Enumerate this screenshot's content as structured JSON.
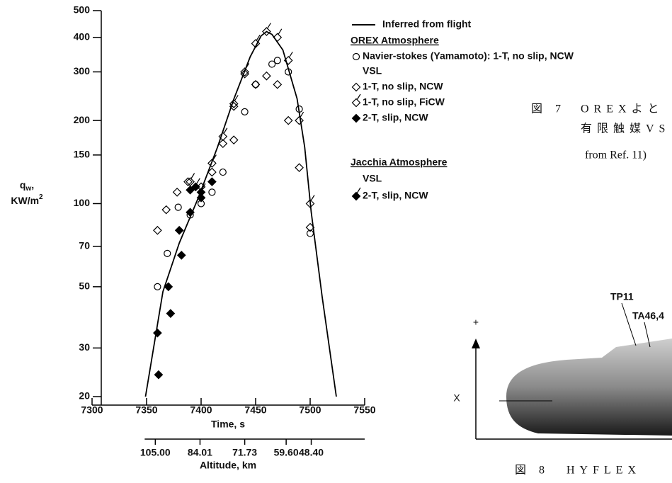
{
  "chart_data": {
    "type": "line",
    "log_y": true,
    "ylim": [
      20,
      500
    ],
    "yticks": [
      20,
      30,
      50,
      70,
      100,
      150,
      200,
      300,
      400,
      500
    ],
    "xlim": [
      7300,
      7550
    ],
    "xticks": [
      7300,
      7350,
      7400,
      7450,
      7500,
      7550
    ],
    "xlabel": "Time, s",
    "ylabel": {
      "symbol": "q",
      "subscript": "w",
      "suffix": ",",
      "unit": "KW/m",
      "unit_power": "2"
    },
    "altitude_axis": {
      "label": "Altitude, km",
      "x": [
        7358,
        7399,
        7440,
        7478,
        7501
      ],
      "ticks": [
        {
          "value": 105,
          "label": "105.00"
        },
        {
          "value": 84.01,
          "label": "84.01"
        },
        {
          "value": 71.73,
          "label": "71.73"
        },
        {
          "value": 59.6,
          "label": "59.60"
        },
        {
          "value": 48.4,
          "label": "48.40"
        }
      ]
    },
    "legend_headings": [
      "OREX Atmosphere",
      "VSL",
      "Jacchia Atmosphere",
      "VSL"
    ],
    "series": [
      {
        "name": "Inferred from flight",
        "color": "#000000",
        "marker": "line",
        "x": [
          7349,
          7365,
          7380,
          7397,
          7415,
          7430,
          7445,
          7455,
          7460,
          7465,
          7475,
          7488,
          7495,
          7501,
          7511,
          7524
        ],
        "values": [
          20,
          48,
          72,
          104,
          160,
          239,
          340,
          405,
          420,
          410,
          360,
          240,
          160,
          93,
          46,
          20
        ]
      },
      {
        "name": "Navier-stokes (Yamamoto): 1-T, no slip, NCW",
        "color": "#000000",
        "marker": "circle",
        "x": [
          7360,
          7369,
          7379,
          7390,
          7400,
          7410,
          7420,
          7440,
          7450,
          7465,
          7470,
          7480,
          7490,
          7500
        ],
        "values": [
          50,
          66,
          97,
          91,
          100,
          110,
          130,
          215,
          270,
          320,
          330,
          300,
          220,
          78
        ]
      },
      {
        "name": "1-T, no slip, NCW",
        "color": "#000000",
        "marker": "diamond",
        "x": [
          7360,
          7368,
          7378,
          7388,
          7400,
          7410,
          7420,
          7430,
          7430,
          7440,
          7450,
          7460,
          7470,
          7480,
          7490,
          7500
        ],
        "values": [
          80,
          95,
          110,
          120,
          115,
          130,
          165,
          170,
          225,
          295,
          270,
          290,
          270,
          200,
          135,
          82
        ]
      },
      {
        "name": "1-T, no slip, FiCW",
        "color": "#000000",
        "marker": "diamond-tick",
        "x": [
          7390,
          7410,
          7420,
          7430,
          7440,
          7450,
          7460,
          7470,
          7480,
          7490,
          7500
        ],
        "values": [
          120,
          140,
          175,
          230,
          300,
          380,
          420,
          400,
          330,
          200,
          100
        ]
      },
      {
        "name": "2-T, slip, NCW",
        "color": "#000000",
        "marker": "diamond-filled",
        "x": [
          7361,
          7360,
          7370,
          7372,
          7380,
          7382,
          7390,
          7390,
          7400,
          7410
        ],
        "values": [
          24,
          34,
          50,
          40,
          80,
          65,
          112,
          93,
          105,
          120
        ]
      },
      {
        "name": "2-T, slip, NCW",
        "color": "#000000",
        "marker": "diamond-filled-tick",
        "x": [
          7395,
          7400
        ],
        "values": [
          115,
          110
        ]
      }
    ]
  },
  "figure7": {
    "label": "図 7",
    "line1": "OREXよと",
    "line2": "有限触媒VS",
    "source": "from Ref. 11)"
  },
  "figure8": {
    "callouts": [
      "TP11",
      "TA46,4"
    ],
    "axis_plus": "+",
    "axis_x": "X",
    "caption_label": "図 8",
    "caption_text": "HYFLEX"
  }
}
